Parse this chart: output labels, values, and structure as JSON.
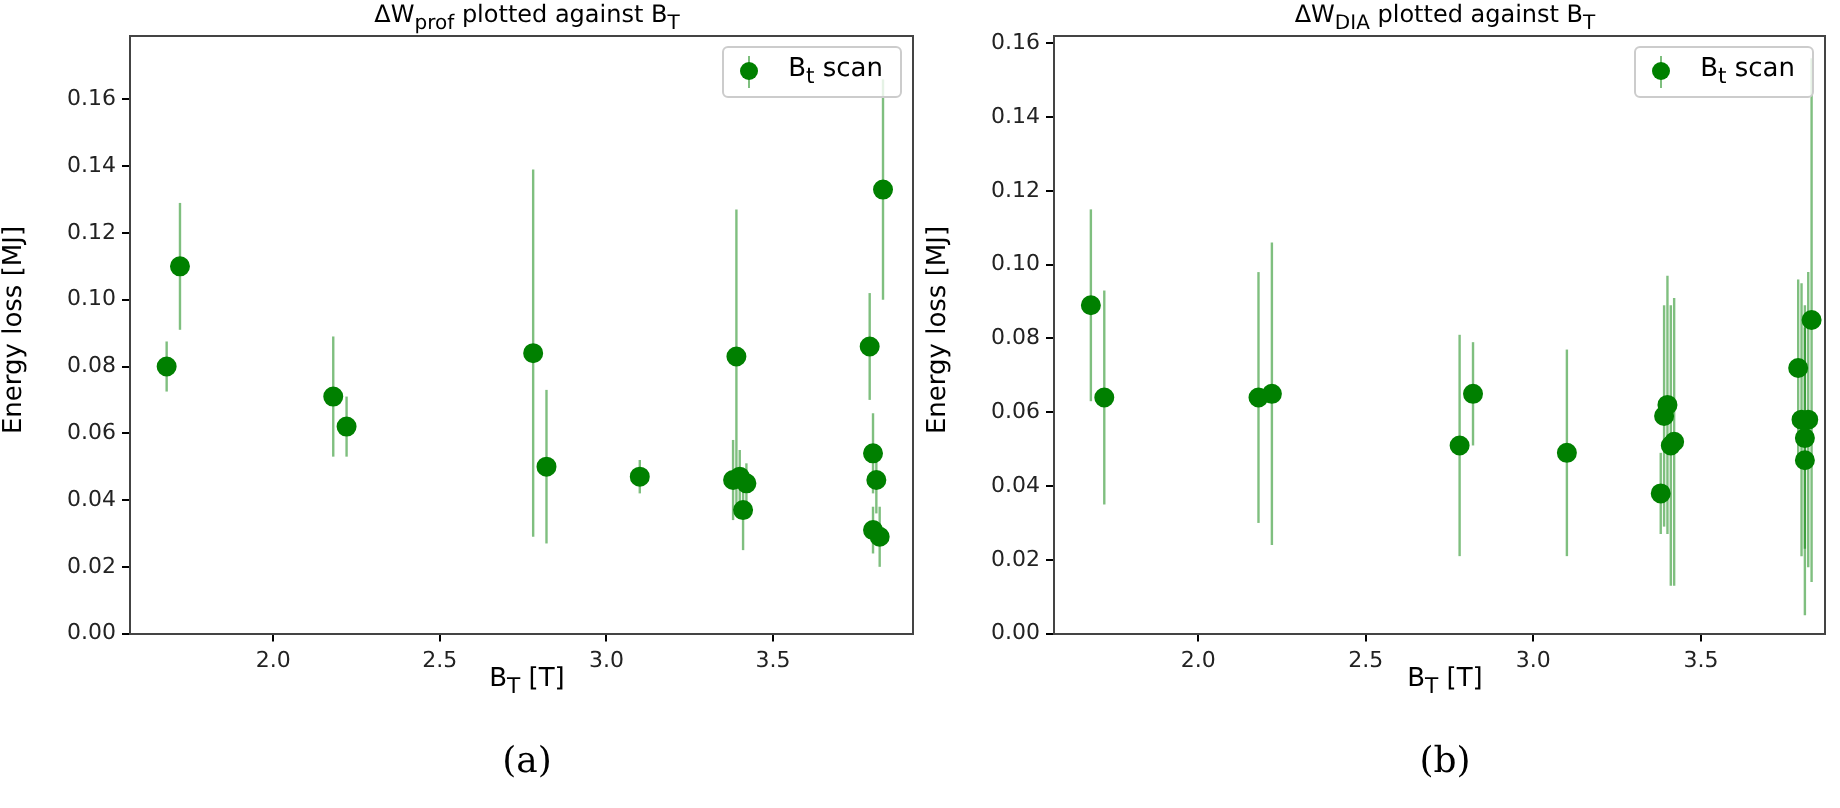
{
  "chart_data": [
    {
      "type": "scatter",
      "title": "ΔW$_{prof}$ plotted against B$_{T}$",
      "xlabel": "B$_{T}$ [T]",
      "ylabel": "Energy loss [MJ]",
      "xlim": [
        1.57,
        3.92
      ],
      "xticks": [
        {
          "value": 2,
          "label": "2.0"
        },
        {
          "value": 2.5,
          "label": "2.5"
        },
        {
          "value": 3,
          "label": "3.0"
        },
        {
          "value": 3.5,
          "label": "3.5"
        }
      ],
      "ylim": [
        0,
        0.179
      ],
      "yticks": [
        {
          "value": 0,
          "label": "0.00"
        },
        {
          "value": 0.02,
          "label": "0.02"
        },
        {
          "value": 0.04,
          "label": "0.04"
        },
        {
          "value": 0.06,
          "label": "0.06"
        },
        {
          "value": 0.08,
          "label": "0.08"
        },
        {
          "value": 0.1,
          "label": "0.10"
        },
        {
          "value": 0.12,
          "label": "0.12"
        },
        {
          "value": 0.14,
          "label": "0.14"
        },
        {
          "value": 0.16,
          "label": "0.16"
        }
      ],
      "grid": false,
      "legend": "top right",
      "marker": "circle",
      "annotations": [
        "(a)"
      ],
      "series": [
        {
          "name": "B$_{t}$ scan",
          "color": "#008000",
          "x": [
            1.68,
            1.72,
            2.18,
            2.22,
            2.78,
            2.82,
            3.1,
            3.38,
            3.39,
            3.4,
            3.41,
            3.42,
            3.79,
            3.8,
            3.81,
            3.8,
            3.82,
            3.83
          ],
          "values": [
            0.08,
            0.11,
            0.071,
            0.062,
            0.084,
            0.05,
            0.047,
            0.046,
            0.083,
            0.047,
            0.037,
            0.045,
            0.086,
            0.054,
            0.046,
            0.031,
            0.029,
            0.133
          ],
          "errors": [
            0.0075,
            0.019,
            0.018,
            0.009,
            0.055,
            0.023,
            0.005,
            0.012,
            0.044,
            0.008,
            0.012,
            0.006,
            0.016,
            0.012,
            0.01,
            0.007,
            0.009,
            0.033
          ]
        }
      ]
    },
    {
      "type": "scatter",
      "title": "ΔW$_{DIA}$ plotted against B$_{T}$",
      "xlabel": "B$_{T}$ [T]",
      "ylabel": "Energy loss [MJ]",
      "xlim": [
        1.57,
        3.87
      ],
      "xticks": [
        {
          "value": 2,
          "label": "2.0"
        },
        {
          "value": 2.5,
          "label": "2.5"
        },
        {
          "value": 3,
          "label": "3.0"
        },
        {
          "value": 3.5,
          "label": "3.5"
        }
      ],
      "ylim": [
        0,
        0.162
      ],
      "yticks": [
        {
          "value": 0,
          "label": "0.00"
        },
        {
          "value": 0.02,
          "label": "0.02"
        },
        {
          "value": 0.04,
          "label": "0.04"
        },
        {
          "value": 0.06,
          "label": "0.06"
        },
        {
          "value": 0.08,
          "label": "0.08"
        },
        {
          "value": 0.1,
          "label": "0.10"
        },
        {
          "value": 0.12,
          "label": "0.12"
        },
        {
          "value": 0.14,
          "label": "0.14"
        },
        {
          "value": 0.16,
          "label": "0.16"
        }
      ],
      "grid": false,
      "legend": "top right",
      "marker": "circle",
      "annotations": [
        "(b)"
      ],
      "series": [
        {
          "name": "B$_{t}$ scan",
          "color": "#008000",
          "x": [
            1.68,
            1.72,
            2.18,
            2.22,
            2.78,
            2.82,
            3.1,
            3.38,
            3.39,
            3.4,
            3.41,
            3.42,
            3.79,
            3.8,
            3.81,
            3.81,
            3.82,
            3.83
          ],
          "values": [
            0.089,
            0.064,
            0.064,
            0.065,
            0.051,
            0.065,
            0.049,
            0.038,
            0.059,
            0.062,
            0.051,
            0.052,
            0.072,
            0.058,
            0.047,
            0.053,
            0.058,
            0.085
          ],
          "errors": [
            0.026,
            0.029,
            0.034,
            0.041,
            0.03,
            0.014,
            0.028,
            0.011,
            0.03,
            0.035,
            0.038,
            0.039,
            0.024,
            0.037,
            0.042,
            0.03,
            0.04,
            0.071
          ]
        }
      ]
    }
  ]
}
